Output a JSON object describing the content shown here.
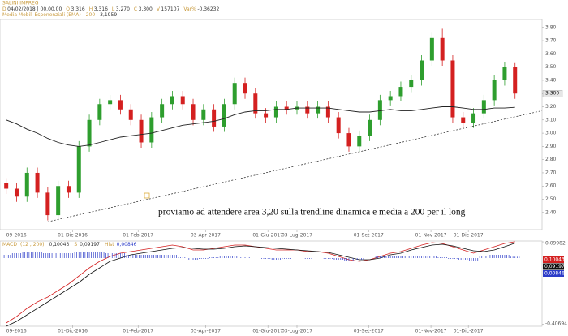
{
  "chart_data": [
    {
      "type": "candlestick",
      "title": "SALINI IMPREG",
      "info": [
        [
          "D",
          "04/02/2018 | 00.00.00"
        ],
        [
          "O",
          "3,316"
        ],
        [
          "H",
          "3,316"
        ],
        [
          "L",
          "3,270"
        ],
        [
          "C",
          "3,300"
        ],
        [
          "V",
          "157107"
        ],
        [
          "Var%",
          "-0,36232"
        ]
      ],
      "ema_name": "Media Mobili Esponenziali (EMA)",
      "ema_period": 200,
      "ema_last": {
        "value": 3.1959,
        "label": "3,1959"
      },
      "open": [
        2.62,
        2.58,
        2.52,
        2.7,
        2.55,
        2.38,
        2.6,
        2.55,
        2.9,
        3.1,
        3.22,
        3.25,
        3.18,
        3.1,
        2.93,
        3.12,
        3.22,
        3.28,
        3.22,
        3.1,
        3.18,
        3.05,
        3.22,
        3.38,
        3.3,
        3.15,
        3.12,
        3.2,
        3.18,
        3.2,
        3.15,
        3.2,
        3.12,
        3.0,
        2.9,
        2.98,
        3.1,
        3.25,
        3.28,
        3.35,
        3.4,
        3.55,
        3.72,
        3.55,
        3.12,
        3.08,
        3.15,
        3.25,
        3.4,
        3.5
      ],
      "high": [
        2.66,
        2.62,
        2.74,
        2.74,
        2.59,
        2.64,
        2.64,
        2.94,
        3.14,
        3.26,
        3.29,
        3.29,
        3.22,
        3.14,
        3.16,
        3.26,
        3.32,
        3.32,
        3.26,
        3.22,
        3.22,
        3.26,
        3.42,
        3.42,
        3.34,
        3.19,
        3.24,
        3.24,
        3.24,
        3.24,
        3.24,
        3.24,
        3.16,
        3.04,
        3.02,
        3.14,
        3.29,
        3.32,
        3.39,
        3.44,
        3.59,
        3.76,
        3.79,
        3.59,
        3.16,
        3.19,
        3.29,
        3.44,
        3.54,
        3.53
      ],
      "low": [
        2.54,
        2.48,
        2.48,
        2.51,
        2.34,
        2.34,
        2.51,
        2.51,
        2.86,
        3.06,
        3.18,
        3.14,
        3.06,
        2.89,
        2.89,
        3.08,
        3.18,
        3.18,
        3.06,
        3.06,
        3.01,
        3.01,
        3.18,
        3.26,
        3.11,
        3.08,
        3.08,
        3.14,
        3.14,
        3.11,
        3.11,
        3.08,
        2.96,
        2.86,
        2.86,
        2.94,
        3.06,
        3.21,
        3.24,
        3.31,
        3.36,
        3.51,
        3.51,
        3.08,
        3.04,
        3.04,
        3.11,
        3.21,
        3.36,
        3.26
      ],
      "close": [
        2.58,
        2.52,
        2.7,
        2.55,
        2.38,
        2.6,
        2.55,
        2.9,
        3.1,
        3.22,
        3.25,
        3.18,
        3.1,
        2.93,
        3.12,
        3.22,
        3.28,
        3.22,
        3.1,
        3.18,
        3.05,
        3.22,
        3.38,
        3.3,
        3.15,
        3.12,
        3.2,
        3.18,
        3.2,
        3.15,
        3.2,
        3.12,
        3.0,
        2.9,
        2.98,
        3.1,
        3.25,
        3.28,
        3.35,
        3.4,
        3.55,
        3.72,
        3.55,
        3.12,
        3.08,
        3.15,
        3.25,
        3.4,
        3.5,
        3.3
      ],
      "ema": [
        3.1,
        3.07,
        3.03,
        3.0,
        2.96,
        2.93,
        2.91,
        2.9,
        2.91,
        2.93,
        2.95,
        2.97,
        2.98,
        2.99,
        3.0,
        3.02,
        3.04,
        3.06,
        3.07,
        3.08,
        3.09,
        3.11,
        3.14,
        3.16,
        3.17,
        3.17,
        3.18,
        3.18,
        3.19,
        3.19,
        3.19,
        3.19,
        3.18,
        3.17,
        3.16,
        3.16,
        3.17,
        3.18,
        3.17,
        3.17,
        3.18,
        3.19,
        3.2,
        3.2,
        3.19,
        3.18,
        3.18,
        3.19,
        3.19,
        3.1959
      ],
      "up_color": "#2e9e2e",
      "down_color": "#d42020",
      "ema_color": "#222222",
      "last_price": {
        "value": 3.3,
        "label": "3,300"
      },
      "trendline": {
        "x": [
          4,
          51.6
        ],
        "values": [
          2.33,
          3.17
        ]
      },
      "annotation": "proviamo ad attendere area 3,20 sulla trendline dinamica e media a 200 per il long",
      "xlim": [
        -0.6,
        51.6
      ],
      "xticks": [
        {
          "value": 0,
          "label": "09-2016"
        },
        {
          "value": 6.4,
          "label": "01-Dic-2016"
        },
        {
          "value": 12.7,
          "label": "01-Feb-2017"
        },
        {
          "value": 19.2,
          "label": "03-Apr-2017"
        },
        {
          "value": 25.2,
          "label": "01-Giu-2017"
        },
        {
          "value": 28.0,
          "label": "03-Lug-2017"
        },
        {
          "value": 34.9,
          "label": "01-Set-2017"
        },
        {
          "value": 40.9,
          "label": "01-Nov-2017"
        },
        {
          "value": 44.5,
          "label": "01-Dic-2017"
        }
      ],
      "ylim": [
        2.27,
        3.86
      ],
      "yticks": [
        {
          "value": 2.4,
          "label": "2,40"
        },
        {
          "value": 2.5,
          "label": "2,50"
        },
        {
          "value": 2.6,
          "label": "2,60"
        },
        {
          "value": 2.7,
          "label": "2,70"
        },
        {
          "value": 2.8,
          "label": "2,80"
        },
        {
          "value": 2.9,
          "label": "2,90"
        },
        {
          "value": 3.0,
          "label": "3,00"
        },
        {
          "value": 3.1,
          "label": "3,10"
        },
        {
          "value": 3.2,
          "label": "3,20"
        },
        {
          "value": 3.3,
          "label": "3,30"
        },
        {
          "value": 3.4,
          "label": "3,40"
        },
        {
          "value": 3.5,
          "label": "3,50"
        },
        {
          "value": 3.6,
          "label": "3,60"
        },
        {
          "value": 3.7,
          "label": "3,70"
        },
        {
          "value": 3.8,
          "label": "3,80"
        }
      ]
    },
    {
      "type": "macd",
      "params": "(12 , 200)",
      "series": [
        {
          "name": "MACD",
          "color": "#d42020",
          "last_label": "0,10043",
          "values": [
            -0.4,
            -0.36,
            -0.31,
            -0.27,
            -0.24,
            -0.2,
            -0.16,
            -0.11,
            -0.06,
            -0.02,
            0.01,
            0.03,
            0.04,
            0.05,
            0.06,
            0.07,
            0.08,
            0.07,
            0.05,
            0.05,
            0.06,
            0.07,
            0.08,
            0.08,
            0.07,
            0.06,
            0.05,
            0.05,
            0.05,
            0.04,
            0.04,
            0.03,
            0.01,
            -0.01,
            -0.02,
            -0.01,
            0.01,
            0.03,
            0.04,
            0.06,
            0.08,
            0.095,
            0.09,
            0.07,
            0.05,
            0.03,
            0.05,
            0.07,
            0.09,
            0.10043
          ]
        },
        {
          "name": "S",
          "color": "#111111",
          "last_label": "0,09197",
          "values": [
            -0.42,
            -0.39,
            -0.35,
            -0.31,
            -0.27,
            -0.23,
            -0.19,
            -0.15,
            -0.1,
            -0.06,
            -0.02,
            0.0,
            0.02,
            0.03,
            0.04,
            0.05,
            0.06,
            0.065,
            0.06,
            0.055,
            0.055,
            0.06,
            0.07,
            0.075,
            0.07,
            0.065,
            0.06,
            0.055,
            0.05,
            0.045,
            0.04,
            0.035,
            0.02,
            0.005,
            -0.01,
            -0.01,
            0.0,
            0.02,
            0.03,
            0.05,
            0.065,
            0.08,
            0.085,
            0.075,
            0.06,
            0.045,
            0.04,
            0.05,
            0.07,
            0.09197
          ]
        },
        {
          "name": "Hist",
          "color": "#2c3cc8",
          "last_label": "0,00846",
          "bars": true,
          "values": [
            0.02,
            0.03,
            0.04,
            0.04,
            0.03,
            0.03,
            0.03,
            0.04,
            0.04,
            0.04,
            0.03,
            0.03,
            0.02,
            0.02,
            0.02,
            0.02,
            0.02,
            0.005,
            -0.01,
            -0.005,
            0.005,
            0.01,
            0.01,
            0.005,
            0.0,
            -0.005,
            -0.01,
            -0.005,
            0.0,
            -0.005,
            0.0,
            -0.005,
            -0.01,
            -0.015,
            -0.01,
            0.0,
            0.01,
            0.01,
            0.01,
            0.01,
            0.015,
            0.015,
            0.005,
            -0.005,
            -0.01,
            -0.015,
            0.01,
            0.02,
            0.02,
            0.00846
          ]
        }
      ],
      "ylim": [
        -0.42,
        0.105
      ],
      "yticks": [
        {
          "value": 0.09982,
          "label": "0,09982"
        },
        {
          "value": -0.40694,
          "label": "-0,40694"
        }
      ]
    }
  ]
}
